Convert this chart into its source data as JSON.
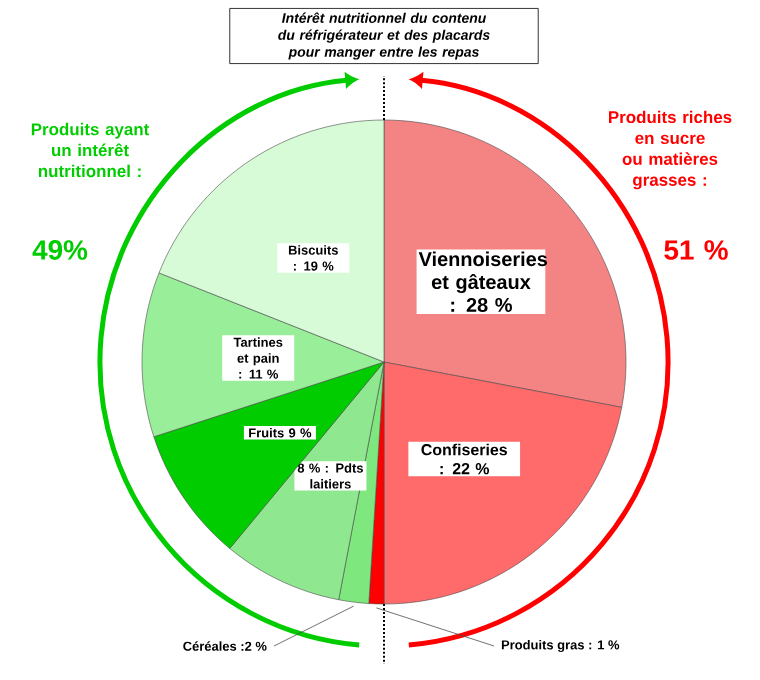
{
  "chart_data": {
    "type": "pie",
    "title": "Intérêt nutritionnel du contenu du réfrigérateur et des placards pour manger entre les repas",
    "categories": [
      "Viennoiseries et gâteaux : 28 %",
      "Confiseries : 22 %",
      "Produits gras : 1 %",
      "Céréales :2 %",
      "8 % : Pdts laitiers",
      "Fruits 9 %",
      "Tartines et pain : 11 %",
      "Biscuits : 19 %"
    ],
    "values": [
      28,
      22,
      1,
      2,
      8,
      9,
      11,
      19
    ],
    "colors": [
      "#f48484",
      "#ff6a6a",
      "#ff0000",
      "#7ee87e",
      "#8fe88f",
      "#00cc00",
      "#99ee99",
      "#d6fbd6"
    ],
    "annotations": [
      "Produits ayant un intérêt nutritionnel :",
      "49%",
      "Produits riches en sucre ou matières grasses :",
      "51 %"
    ]
  }
}
